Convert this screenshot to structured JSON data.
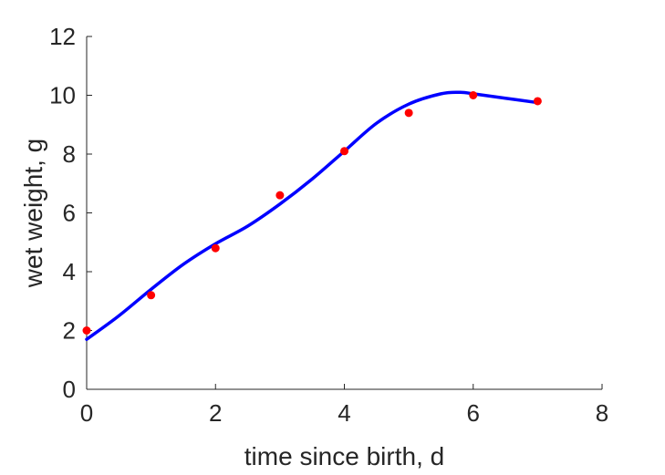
{
  "chart_data": {
    "type": "scatter",
    "xlabel": "time since birth, d",
    "ylabel": "wet weight, g",
    "xlim": [
      0,
      8
    ],
    "ylim": [
      0,
      12
    ],
    "xticks": [
      0,
      2,
      4,
      6,
      8
    ],
    "yticks": [
      0,
      2,
      4,
      6,
      8,
      10,
      12
    ],
    "grid": false,
    "series": [
      {
        "kind": "points",
        "color": "#ff0000",
        "x": [
          0,
          1,
          2,
          3,
          4,
          5,
          6,
          7
        ],
        "y": [
          2.0,
          3.2,
          4.8,
          6.6,
          8.1,
          9.4,
          10.0,
          9.8
        ]
      },
      {
        "kind": "line",
        "color": "#0000ff",
        "x": [
          0,
          0.5,
          1,
          1.5,
          2,
          2.5,
          3,
          3.5,
          4,
          4.5,
          5,
          5.5,
          5.8,
          6,
          6.5,
          7
        ],
        "y": [
          1.7,
          2.5,
          3.4,
          4.25,
          4.95,
          5.55,
          6.3,
          7.15,
          8.1,
          9.05,
          9.7,
          10.05,
          10.1,
          10.05,
          9.9,
          9.75
        ]
      }
    ]
  }
}
